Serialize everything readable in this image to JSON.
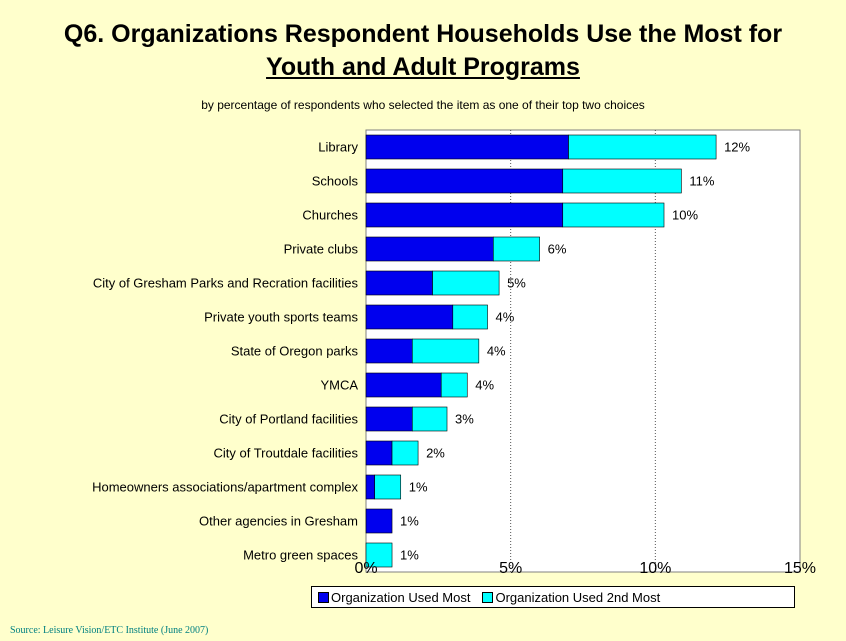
{
  "title_line1": "Q6. Organizations Respondent Households Use the Most for",
  "title_line2": "Youth and Adult Programs",
  "subtitle": "by percentage of respondents who selected the item as one of their top two choices",
  "source": "Source:  Leisure Vision/ETC Institute (June 2007)",
  "colors": {
    "most": "#0000ee",
    "second": "#00ffff",
    "background": "#ffffcc"
  },
  "chart_data": {
    "type": "bar",
    "orientation": "horizontal",
    "stacked": true,
    "categories": [
      "Library",
      "Schools",
      "Churches",
      "Private clubs",
      "City of Gresham Parks and Recration facilities",
      "Private youth sports teams",
      "State of Oregon parks",
      "YMCA",
      "City of Portland facilities",
      "City of Troutdale facilities",
      "Homeowners associations/apartment complex",
      "Other agencies in Gresham",
      "Metro green spaces"
    ],
    "series": [
      {
        "name": "Organization Used Most",
        "values": [
          7.0,
          6.8,
          6.8,
          4.4,
          2.3,
          3.0,
          1.6,
          2.6,
          1.6,
          0.9,
          0.3,
          0.9,
          0.0
        ]
      },
      {
        "name": "Organization Used 2nd Most",
        "values": [
          5.1,
          4.1,
          3.5,
          1.6,
          2.3,
          1.2,
          2.3,
          0.9,
          1.2,
          0.9,
          0.9,
          0.0,
          0.9
        ]
      }
    ],
    "data_labels": [
      "12%",
      "11%",
      "10%",
      "6%",
      "5%",
      "4%",
      "4%",
      "4%",
      "3%",
      "2%",
      "1%",
      "1%",
      "1%"
    ],
    "x_ticks": [
      "0%",
      "5%",
      "10%",
      "15%"
    ],
    "xlim": [
      0,
      15
    ],
    "grid": "vertical dotted",
    "legend_position": "bottom"
  }
}
